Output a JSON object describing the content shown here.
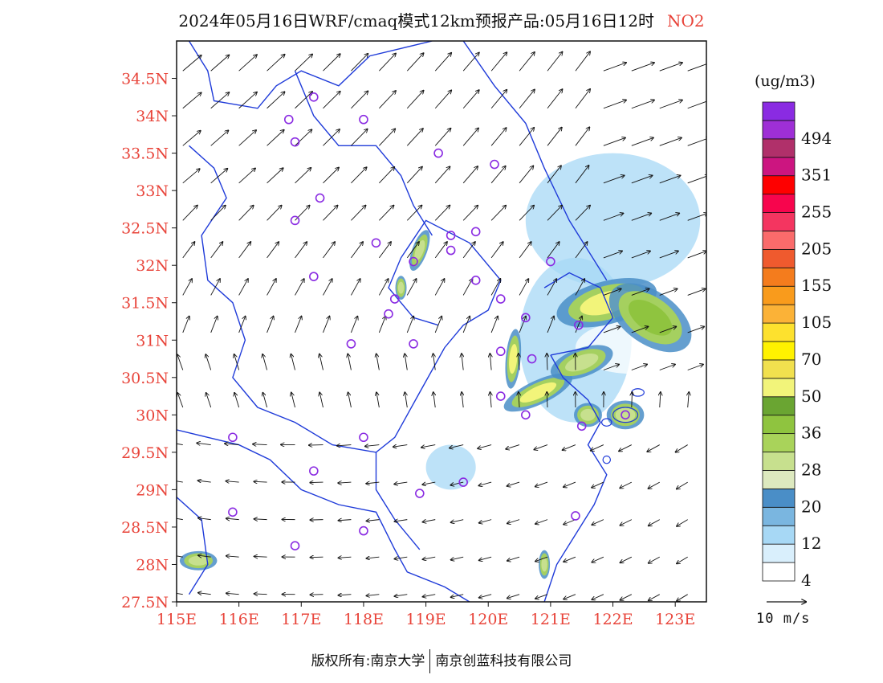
{
  "title": {
    "main": "2024年05月16日WRF/cmaq模式12km预报产品:05月16日12时",
    "species": "NO2"
  },
  "map": {
    "lon_range": [
      115,
      123.5
    ],
    "lat_range": [
      27.5,
      35
    ],
    "lat_ticks": [
      "34.5N",
      "34N",
      "33.5N",
      "33N",
      "32.5N",
      "32N",
      "31.5N",
      "31N",
      "30.5N",
      "30N",
      "29.5N",
      "29N",
      "28.5N",
      "28N",
      "27.5N"
    ],
    "lon_ticks": [
      "115E",
      "116E",
      "117E",
      "118E",
      "119E",
      "120E",
      "121E",
      "122E",
      "123E"
    ],
    "hotspots": [
      {
        "lon": 121.9,
        "lat": 31.5,
        "level": "50",
        "rx": 0.55,
        "ry": 0.18,
        "rot": -15
      },
      {
        "lon": 122.6,
        "lat": 31.3,
        "level": "36",
        "rx": 0.5,
        "ry": 0.22,
        "rot": 35
      },
      {
        "lon": 120.4,
        "lat": 30.75,
        "level": "50",
        "rx": 0.08,
        "ry": 0.25,
        "rot": 5
      },
      {
        "lon": 120.8,
        "lat": 30.3,
        "level": "50",
        "rx": 0.4,
        "ry": 0.1,
        "rot": -25
      },
      {
        "lon": 121.5,
        "lat": 30.7,
        "level": "28",
        "rx": 0.35,
        "ry": 0.12,
        "rot": -20
      },
      {
        "lon": 121.6,
        "lat": 30.0,
        "level": "28",
        "rx": 0.15,
        "ry": 0.1,
        "rot": 0
      },
      {
        "lon": 122.2,
        "lat": 30.0,
        "level": "28",
        "rx": 0.2,
        "ry": 0.12,
        "rot": 0
      },
      {
        "lon": 118.9,
        "lat": 32.2,
        "level": "28",
        "rx": 0.08,
        "ry": 0.18,
        "rot": 20
      },
      {
        "lon": 118.6,
        "lat": 31.7,
        "level": "28",
        "rx": 0.06,
        "ry": 0.1,
        "rot": 0
      },
      {
        "lon": 115.35,
        "lat": 28.05,
        "level": "28",
        "rx": 0.2,
        "ry": 0.08,
        "rot": 0
      },
      {
        "lon": 120.9,
        "lat": 28.0,
        "level": "28",
        "rx": 0.06,
        "ry": 0.12,
        "rot": 0
      }
    ],
    "haze": [
      {
        "lon": 122.0,
        "lat": 32.6,
        "rx": 1.4,
        "ry": 0.9,
        "level": "12"
      },
      {
        "lon": 121.4,
        "lat": 31.0,
        "rx": 0.9,
        "ry": 1.1,
        "level": "12"
      },
      {
        "lon": 119.8,
        "lat": 33.5,
        "rx": 0.8,
        "ry": 0.6,
        "level": "4"
      },
      {
        "lon": 117.6,
        "lat": 31.0,
        "rx": 0.7,
        "ry": 0.6,
        "level": "4"
      },
      {
        "lon": 117.2,
        "lat": 28.5,
        "rx": 1.4,
        "ry": 0.35,
        "level": "4"
      },
      {
        "lon": 120.6,
        "lat": 29.2,
        "rx": 0.6,
        "ry": 0.9,
        "level": "4"
      },
      {
        "lon": 119.4,
        "lat": 29.3,
        "rx": 0.4,
        "ry": 0.3,
        "level": "12"
      },
      {
        "lon": 115.8,
        "lat": 28.3,
        "rx": 0.7,
        "ry": 0.5,
        "level": "4"
      },
      {
        "lon": 122.3,
        "lat": 30.9,
        "rx": 0.9,
        "ry": 0.35,
        "level": "4"
      },
      {
        "lon": 116.0,
        "lat": 34.0,
        "rx": 1.0,
        "ry": 0.6,
        "level": "4"
      }
    ],
    "stations": [
      [
        117.2,
        34.25
      ],
      [
        116.8,
        33.95
      ],
      [
        118.0,
        33.95
      ],
      [
        116.9,
        33.65
      ],
      [
        119.2,
        33.5
      ],
      [
        120.1,
        33.35
      ],
      [
        117.3,
        32.9
      ],
      [
        116.9,
        32.6
      ],
      [
        119.8,
        32.45
      ],
      [
        118.2,
        32.3
      ],
      [
        119.4,
        32.4
      ],
      [
        119.4,
        32.2
      ],
      [
        118.8,
        32.05
      ],
      [
        121.0,
        32.05
      ],
      [
        117.2,
        31.85
      ],
      [
        119.8,
        31.8
      ],
      [
        118.5,
        31.55
      ],
      [
        118.4,
        31.35
      ],
      [
        120.2,
        31.55
      ],
      [
        120.6,
        31.3
      ],
      [
        121.45,
        31.2
      ],
      [
        117.8,
        30.95
      ],
      [
        118.8,
        30.95
      ],
      [
        120.2,
        30.85
      ],
      [
        120.7,
        30.75
      ],
      [
        120.2,
        30.25
      ],
      [
        120.6,
        30.0
      ],
      [
        121.5,
        29.85
      ],
      [
        122.2,
        30.0
      ],
      [
        115.9,
        29.7
      ],
      [
        118.0,
        29.7
      ],
      [
        117.2,
        29.25
      ],
      [
        119.6,
        29.1
      ],
      [
        118.9,
        28.95
      ],
      [
        115.9,
        28.7
      ],
      [
        121.4,
        28.65
      ],
      [
        118.0,
        28.45
      ],
      [
        116.9,
        28.25
      ]
    ],
    "wind_grid": {
      "lon_start": 115.1,
      "lon_end": 123.3,
      "lon_step": 0.45,
      "lat_start": 27.6,
      "lat_end": 34.8,
      "lat_step": 0.5
    }
  },
  "colorbar": {
    "unit": "(ug/m3)",
    "levels": [
      {
        "label": "4",
        "color": "#ffffff"
      },
      {
        "label": "",
        "color": "#d9effc"
      },
      {
        "label": "12",
        "color": "#a7d8f5"
      },
      {
        "label": "",
        "color": "#7ab6e0"
      },
      {
        "label": "20",
        "color": "#4a8ec7"
      },
      {
        "label": "",
        "color": "#dde9bf"
      },
      {
        "label": "28",
        "color": "#c7e08e"
      },
      {
        "label": "",
        "color": "#a9d35a"
      },
      {
        "label": "36",
        "color": "#8fc43f"
      },
      {
        "label": "",
        "color": "#6aa532"
      },
      {
        "label": "50",
        "color": "#f2f47a"
      },
      {
        "label": "",
        "color": "#f1e04e"
      },
      {
        "label": "70",
        "color": "#fff200"
      },
      {
        "label": "",
        "color": "#fde12e"
      },
      {
        "label": "105",
        "color": "#fbb237"
      },
      {
        "label": "",
        "color": "#f99b1c"
      },
      {
        "label": "155",
        "color": "#f47c1d"
      },
      {
        "label": "",
        "color": "#ef5a2e"
      },
      {
        "label": "205",
        "color": "#fa6b6b"
      },
      {
        "label": "",
        "color": "#f43560"
      },
      {
        "label": "255",
        "color": "#f7054d"
      },
      {
        "label": "",
        "color": "#fe0000"
      },
      {
        "label": "351",
        "color": "#cc1580"
      },
      {
        "label": "",
        "color": "#b0306a"
      },
      {
        "label": "494",
        "color": "#9e2fd6"
      },
      {
        "label": "",
        "color": "#8a2be2"
      }
    ]
  },
  "wind_reference": "10 m/s",
  "footer": {
    "left": "版权所有:南京大学",
    "right": "南京创蓝科技有限公司"
  },
  "colors": {
    "axis_label": "#e8443a",
    "boundary": "#1f3bd9",
    "station": "#8a2be2"
  }
}
